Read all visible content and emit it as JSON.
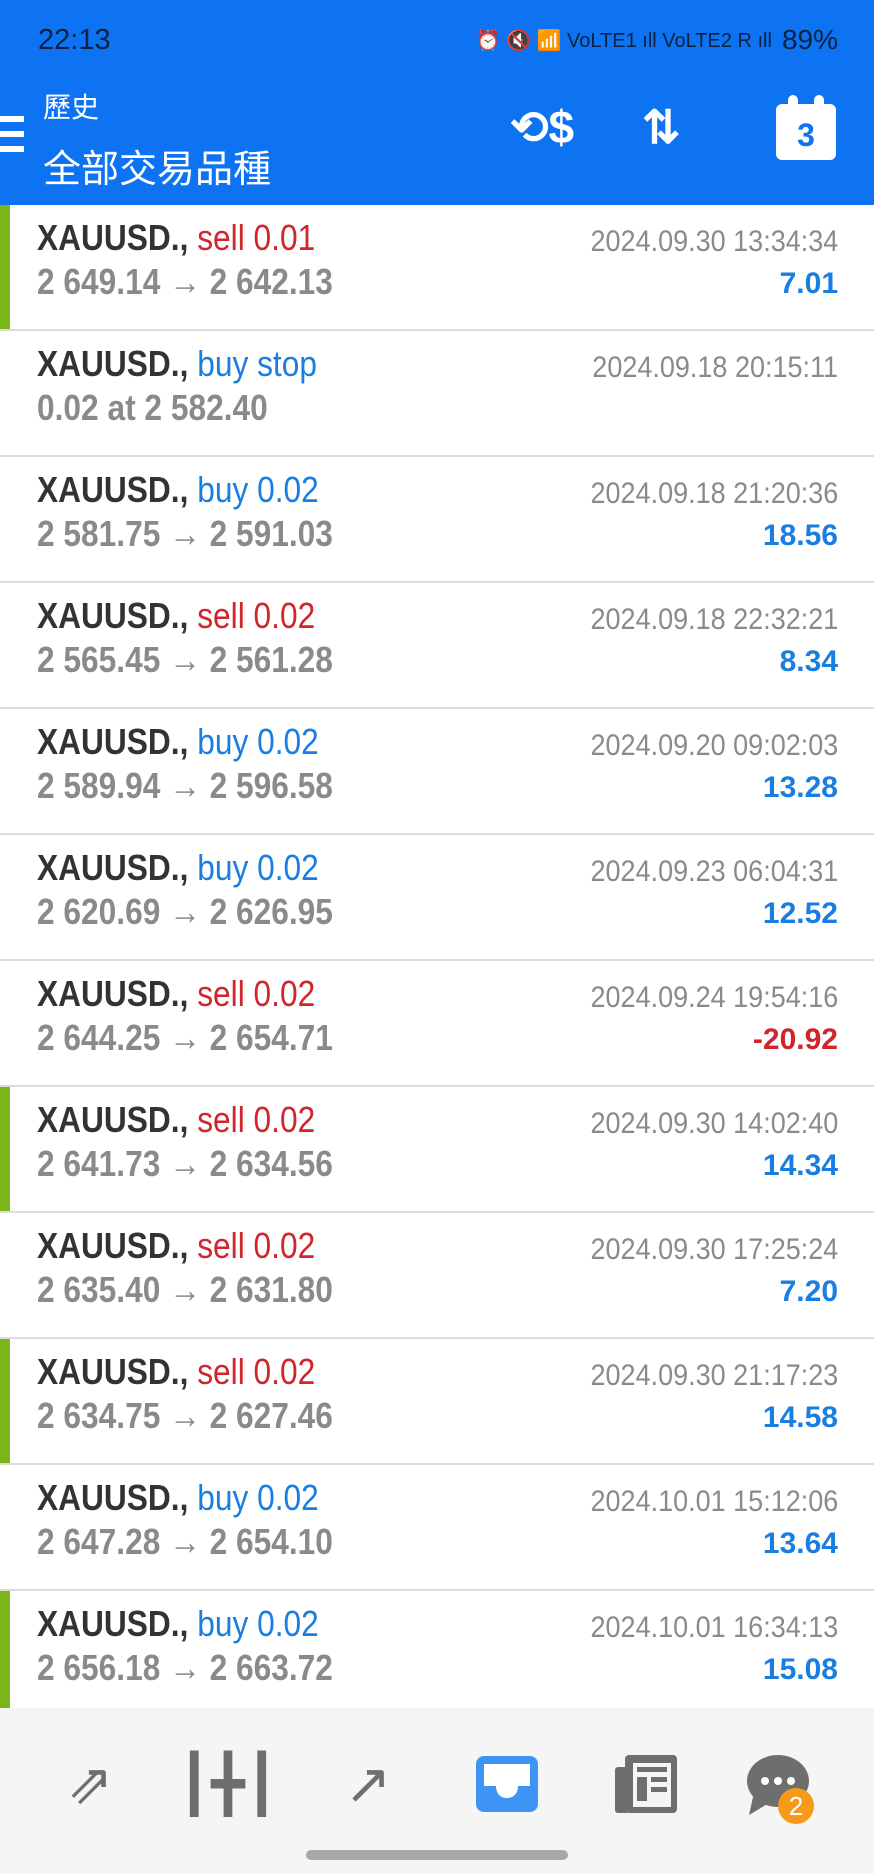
{
  "status_bar": {
    "time": "22:13",
    "icons": "⏰ 🔇 📶 VoLTE1 ıll VoLTE2 R ıll",
    "battery": "89%"
  },
  "header": {
    "subtitle": "歷史",
    "title": "全部交易品種",
    "icons": [
      "menu-icon",
      "currency-exchange-icon",
      "sort-icon",
      "calendar-icon"
    ],
    "calendar_day": "3"
  },
  "colors": {
    "header": "#0d73f2",
    "sell": "#d0262b",
    "buy": "#1a7ee0",
    "marker": "#7cb518",
    "badge": "#f59a1b"
  },
  "trades": [
    {
      "symbol": "XAUUSD.,",
      "type": "sell",
      "lot": "sell 0.01",
      "prices": "2 649.14 → 2 642.13",
      "time": "2024.09.30 13:34:34",
      "profit": "7.01",
      "marked": true
    },
    {
      "symbol": "XAUUSD.,",
      "type": "buy",
      "lot": "buy stop",
      "prices": "0.02 at 2 582.40",
      "time": "2024.09.18 20:15:11",
      "profit": "",
      "marked": false
    },
    {
      "symbol": "XAUUSD.,",
      "type": "buy",
      "lot": "buy 0.02",
      "prices": "2 581.75 → 2 591.03",
      "time": "2024.09.18 21:20:36",
      "profit": "18.56",
      "marked": false
    },
    {
      "symbol": "XAUUSD.,",
      "type": "sell",
      "lot": "sell 0.02",
      "prices": "2 565.45 → 2 561.28",
      "time": "2024.09.18 22:32:21",
      "profit": "8.34",
      "marked": false
    },
    {
      "symbol": "XAUUSD.,",
      "type": "buy",
      "lot": "buy 0.02",
      "prices": "2 589.94 → 2 596.58",
      "time": "2024.09.20 09:02:03",
      "profit": "13.28",
      "marked": false
    },
    {
      "symbol": "XAUUSD.,",
      "type": "buy",
      "lot": "buy 0.02",
      "prices": "2 620.69 → 2 626.95",
      "time": "2024.09.23 06:04:31",
      "profit": "12.52",
      "marked": false
    },
    {
      "symbol": "XAUUSD.,",
      "type": "sell",
      "lot": "sell 0.02",
      "prices": "2 644.25 → 2 654.71",
      "time": "2024.09.24 19:54:16",
      "profit": "-20.92",
      "marked": false
    },
    {
      "symbol": "XAUUSD.,",
      "type": "sell",
      "lot": "sell 0.02",
      "prices": "2 641.73 → 2 634.56",
      "time": "2024.09.30 14:02:40",
      "profit": "14.34",
      "marked": true
    },
    {
      "symbol": "XAUUSD.,",
      "type": "sell",
      "lot": "sell 0.02",
      "prices": "2 635.40 → 2 631.80",
      "time": "2024.09.30 17:25:24",
      "profit": "7.20",
      "marked": false
    },
    {
      "symbol": "XAUUSD.,",
      "type": "sell",
      "lot": "sell 0.02",
      "prices": "2 634.75 → 2 627.46",
      "time": "2024.09.30 21:17:23",
      "profit": "14.58",
      "marked": true
    },
    {
      "symbol": "XAUUSD.,",
      "type": "buy",
      "lot": "buy 0.02",
      "prices": "2 647.28 → 2 654.10",
      "time": "2024.10.01 15:12:06",
      "profit": "13.64",
      "marked": false
    },
    {
      "symbol": "XAUUSD.,",
      "type": "buy",
      "lot": "buy 0.02",
      "prices": "2 656.18 → 2 663.72",
      "time": "2024.10.01 16:34:13",
      "profit": "15.08",
      "marked": true
    }
  ],
  "bottom_nav": {
    "items": [
      "quotes-icon",
      "chart-icon",
      "trade-icon",
      "history-icon",
      "news-icon",
      "chat-icon"
    ],
    "active": "history-icon",
    "chat_badge": "2"
  }
}
